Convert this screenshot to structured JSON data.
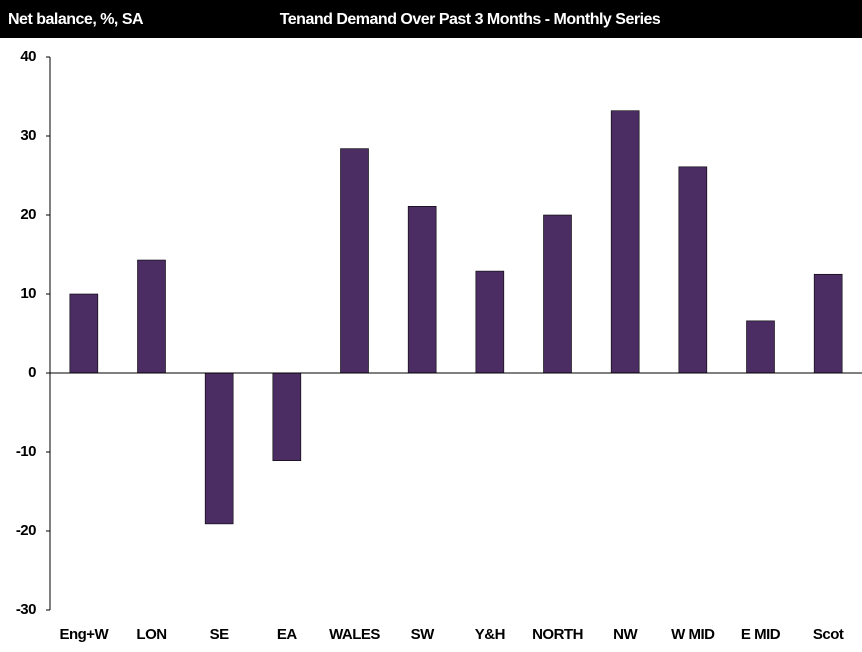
{
  "chart_data": {
    "type": "bar",
    "title": "Tenand Demand Over Past 3 Months - Monthly Series",
    "y_label": "Net balance, %, SA",
    "categories": [
      "Eng+W",
      "LON",
      "SE",
      "EA",
      "WALES",
      "SW",
      "Y&H",
      "NORTH",
      "NW",
      "W MID",
      "E MID",
      "Scot"
    ],
    "values": [
      10,
      14.3,
      -19.1,
      -11.1,
      28.4,
      21.1,
      12.9,
      20,
      33.2,
      26.1,
      6.6,
      12.5
    ],
    "color": "#4b2d63",
    "ylim": [
      -30,
      40
    ],
    "yticks": [
      -30,
      -20,
      -10,
      0,
      10,
      20,
      30,
      40
    ],
    "grid": false
  }
}
